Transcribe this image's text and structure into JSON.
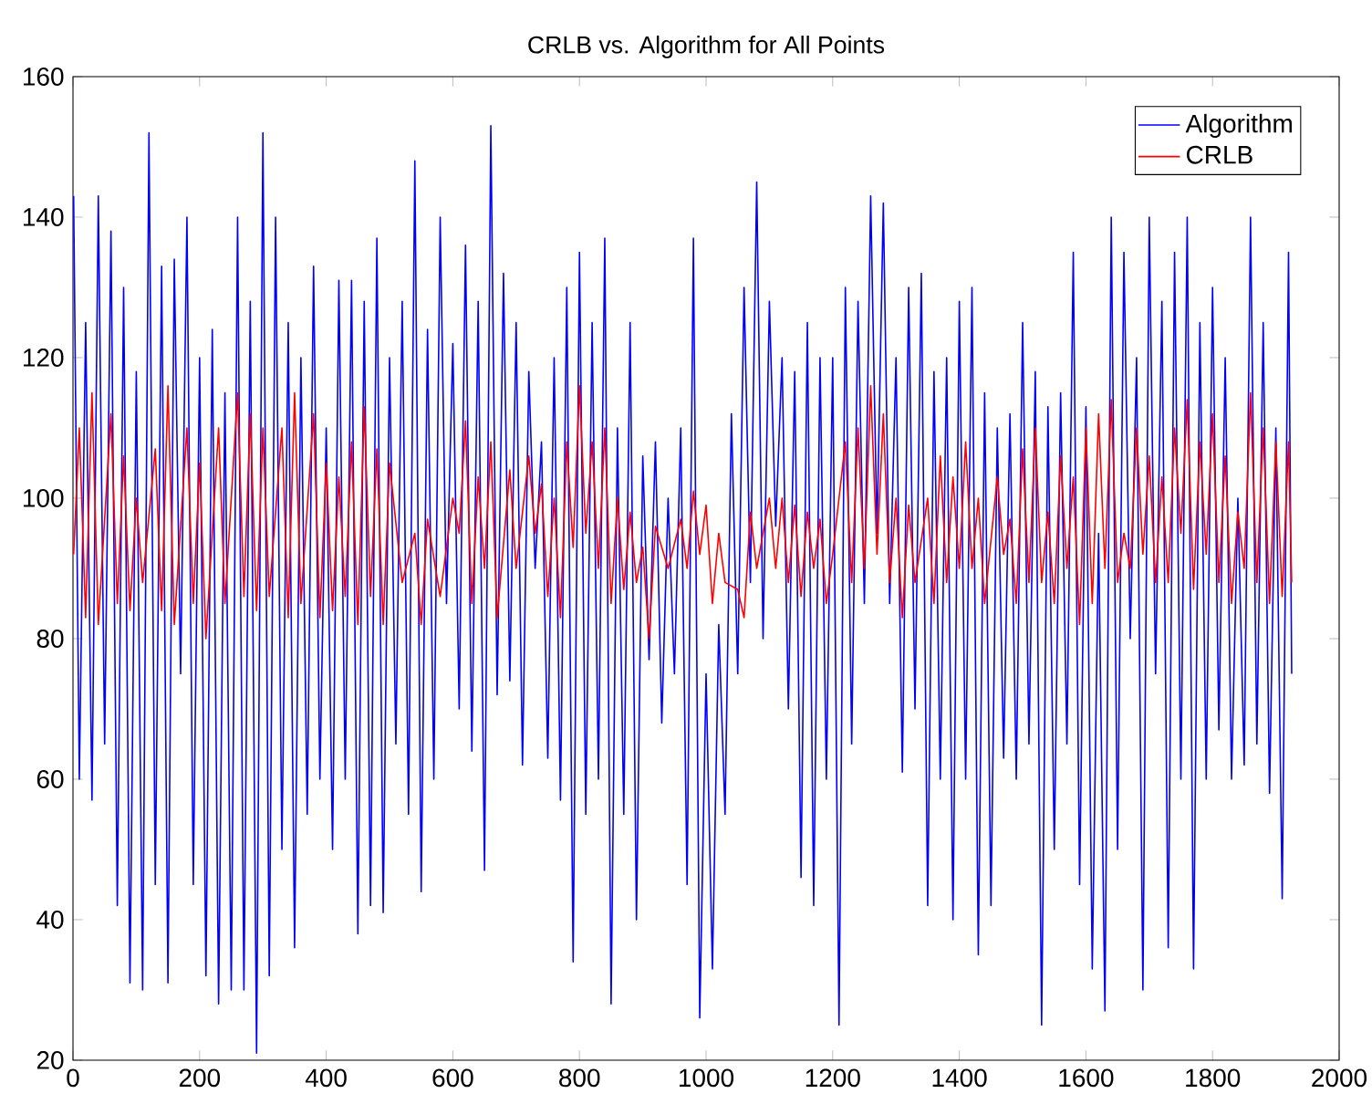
{
  "chart_data": {
    "type": "line",
    "title": "CRLB vs. Algorithm for All Points",
    "xlim": [
      0,
      2000
    ],
    "xticks": [
      0,
      200,
      400,
      600,
      800,
      1000,
      1200,
      1400,
      1600,
      1800,
      2000
    ],
    "ylim": [
      20,
      160
    ],
    "yticks": [
      20,
      40,
      60,
      80,
      100,
      120,
      140,
      160
    ],
    "legend": "top right",
    "grid": false,
    "series": [
      {
        "name": "Algorithm",
        "color": "#0000ff",
        "x": [
          1,
          10,
          20,
          30,
          40,
          50,
          60,
          70,
          80,
          90,
          100,
          110,
          120,
          130,
          140,
          150,
          160,
          170,
          180,
          190,
          200,
          210,
          220,
          230,
          240,
          250,
          260,
          270,
          280,
          290,
          300,
          310,
          320,
          330,
          340,
          350,
          360,
          370,
          380,
          390,
          400,
          410,
          420,
          430,
          440,
          450,
          460,
          470,
          480,
          490,
          500,
          510,
          520,
          530,
          540,
          550,
          560,
          570,
          580,
          590,
          600,
          610,
          620,
          630,
          640,
          650,
          660,
          670,
          680,
          690,
          700,
          710,
          720,
          730,
          740,
          750,
          760,
          770,
          780,
          790,
          800,
          810,
          820,
          830,
          840,
          850,
          860,
          870,
          880,
          890,
          900,
          910,
          920,
          930,
          940,
          950,
          960,
          970,
          980,
          990,
          1000,
          1010,
          1020,
          1030,
          1040,
          1050,
          1060,
          1070,
          1080,
          1090,
          1100,
          1110,
          1120,
          1130,
          1140,
          1150,
          1160,
          1170,
          1180,
          1190,
          1200,
          1210,
          1220,
          1230,
          1240,
          1250,
          1260,
          1270,
          1280,
          1290,
          1300,
          1310,
          1320,
          1330,
          1340,
          1350,
          1360,
          1370,
          1380,
          1390,
          1400,
          1410,
          1420,
          1430,
          1440,
          1450,
          1460,
          1470,
          1480,
          1490,
          1500,
          1510,
          1520,
          1530,
          1540,
          1550,
          1560,
          1570,
          1580,
          1590,
          1600,
          1610,
          1620,
          1630,
          1640,
          1650,
          1660,
          1670,
          1680,
          1690,
          1700,
          1710,
          1720,
          1730,
          1740,
          1750,
          1760,
          1770,
          1780,
          1790,
          1800,
          1810,
          1820,
          1830,
          1840,
          1850,
          1860,
          1870,
          1880,
          1890,
          1900,
          1910,
          1920,
          1925
        ],
        "values": [
          143,
          60,
          125,
          57,
          143,
          65,
          138,
          42,
          130,
          31,
          118,
          30,
          152,
          45,
          133,
          31,
          134,
          75,
          140,
          45,
          120,
          32,
          124,
          28,
          115,
          30,
          140,
          30,
          128,
          21,
          152,
          32,
          140,
          50,
          125,
          36,
          120,
          55,
          133,
          60,
          110,
          50,
          131,
          60,
          131,
          38,
          128,
          42,
          137,
          41,
          120,
          65,
          128,
          55,
          148,
          44,
          124,
          60,
          140,
          85,
          122,
          70,
          136,
          64,
          128,
          47,
          153,
          72,
          132,
          74,
          125,
          62,
          118,
          90,
          108,
          63,
          120,
          57,
          130,
          34,
          135,
          55,
          125,
          60,
          137,
          28,
          110,
          55,
          125,
          40,
          106,
          77,
          108,
          68,
          100,
          75,
          110,
          45,
          137,
          26,
          75,
          33,
          82,
          55,
          112,
          75,
          130,
          88,
          145,
          80,
          128,
          96,
          120,
          70,
          118,
          46,
          125,
          42,
          120,
          60,
          120,
          25,
          130,
          65,
          128,
          85,
          143,
          95,
          142,
          85,
          120,
          61,
          130,
          70,
          132,
          42,
          118,
          60,
          120,
          40,
          128,
          60,
          130,
          35,
          115,
          42,
          110,
          63,
          112,
          60,
          125,
          65,
          118,
          25,
          113,
          50,
          115,
          65,
          135,
          45,
          113,
          33,
          95,
          27,
          140,
          50,
          135,
          80,
          120,
          30,
          140,
          75,
          128,
          36,
          135,
          60,
          140,
          33,
          125,
          60,
          130,
          67,
          120,
          60,
          100,
          62,
          140,
          65,
          125,
          58,
          110,
          43,
          135,
          75
        ]
      },
      {
        "name": "CRLB",
        "color": "#ff0000",
        "x": [
          1,
          10,
          20,
          30,
          40,
          60,
          70,
          80,
          90,
          100,
          110,
          130,
          140,
          150,
          160,
          180,
          190,
          200,
          210,
          230,
          240,
          260,
          270,
          280,
          290,
          300,
          310,
          330,
          340,
          350,
          360,
          380,
          390,
          400,
          410,
          420,
          430,
          440,
          450,
          460,
          470,
          480,
          490,
          500,
          520,
          540,
          550,
          560,
          580,
          600,
          610,
          620,
          630,
          640,
          650,
          660,
          670,
          690,
          700,
          720,
          730,
          740,
          750,
          760,
          770,
          780,
          790,
          800,
          810,
          820,
          830,
          840,
          850,
          860,
          870,
          880,
          890,
          900,
          910,
          920,
          940,
          960,
          970,
          980,
          990,
          1000,
          1010,
          1020,
          1030,
          1050,
          1060,
          1070,
          1080,
          1100,
          1110,
          1120,
          1130,
          1140,
          1150,
          1160,
          1170,
          1180,
          1190,
          1200,
          1210,
          1220,
          1230,
          1240,
          1250,
          1260,
          1270,
          1280,
          1290,
          1300,
          1310,
          1320,
          1330,
          1350,
          1360,
          1370,
          1380,
          1390,
          1400,
          1410,
          1420,
          1430,
          1440,
          1460,
          1470,
          1480,
          1490,
          1500,
          1510,
          1520,
          1530,
          1540,
          1550,
          1560,
          1570,
          1580,
          1590,
          1600,
          1610,
          1620,
          1630,
          1640,
          1650,
          1660,
          1670,
          1680,
          1690,
          1700,
          1710,
          1720,
          1730,
          1740,
          1750,
          1760,
          1770,
          1780,
          1790,
          1800,
          1810,
          1820,
          1830,
          1840,
          1850,
          1860,
          1870,
          1880,
          1890,
          1900,
          1910,
          1920,
          1925
        ],
        "values": [
          92,
          110,
          83,
          115,
          82,
          112,
          85,
          106,
          84,
          100,
          88,
          107,
          84,
          116,
          82,
          110,
          85,
          105,
          80,
          110,
          85,
          115,
          86,
          112,
          84,
          110,
          86,
          110,
          83,
          115,
          85,
          112,
          83,
          105,
          84,
          103,
          86,
          108,
          82,
          113,
          86,
          107,
          82,
          105,
          88,
          95,
          82,
          97,
          86,
          100,
          95,
          111,
          85,
          103,
          90,
          108,
          83,
          104,
          90,
          106,
          95,
          102,
          86,
          100,
          83,
          108,
          93,
          116,
          95,
          108,
          90,
          110,
          85,
          100,
          87,
          98,
          88,
          93,
          80,
          96,
          90,
          97,
          90,
          101,
          92,
          99,
          85,
          95,
          88,
          87,
          83,
          98,
          90,
          100,
          90,
          100,
          88,
          99,
          86,
          98,
          90,
          97,
          85,
          92,
          100,
          108,
          88,
          110,
          90,
          116,
          92,
          112,
          88,
          100,
          83,
          99,
          88,
          100,
          85,
          106,
          88,
          103,
          90,
          108,
          90,
          100,
          85,
          103,
          92,
          97,
          85,
          107,
          88,
          110,
          88,
          98,
          85,
          106,
          90,
          103,
          82,
          110,
          85,
          112,
          90,
          114,
          88,
          95,
          90,
          110,
          92,
          106,
          88,
          103,
          88,
          110,
          95,
          114,
          87,
          108,
          92,
          112,
          88,
          106,
          85,
          98,
          90,
          115,
          88,
          110,
          85,
          108,
          86,
          108,
          88
        ]
      }
    ]
  }
}
